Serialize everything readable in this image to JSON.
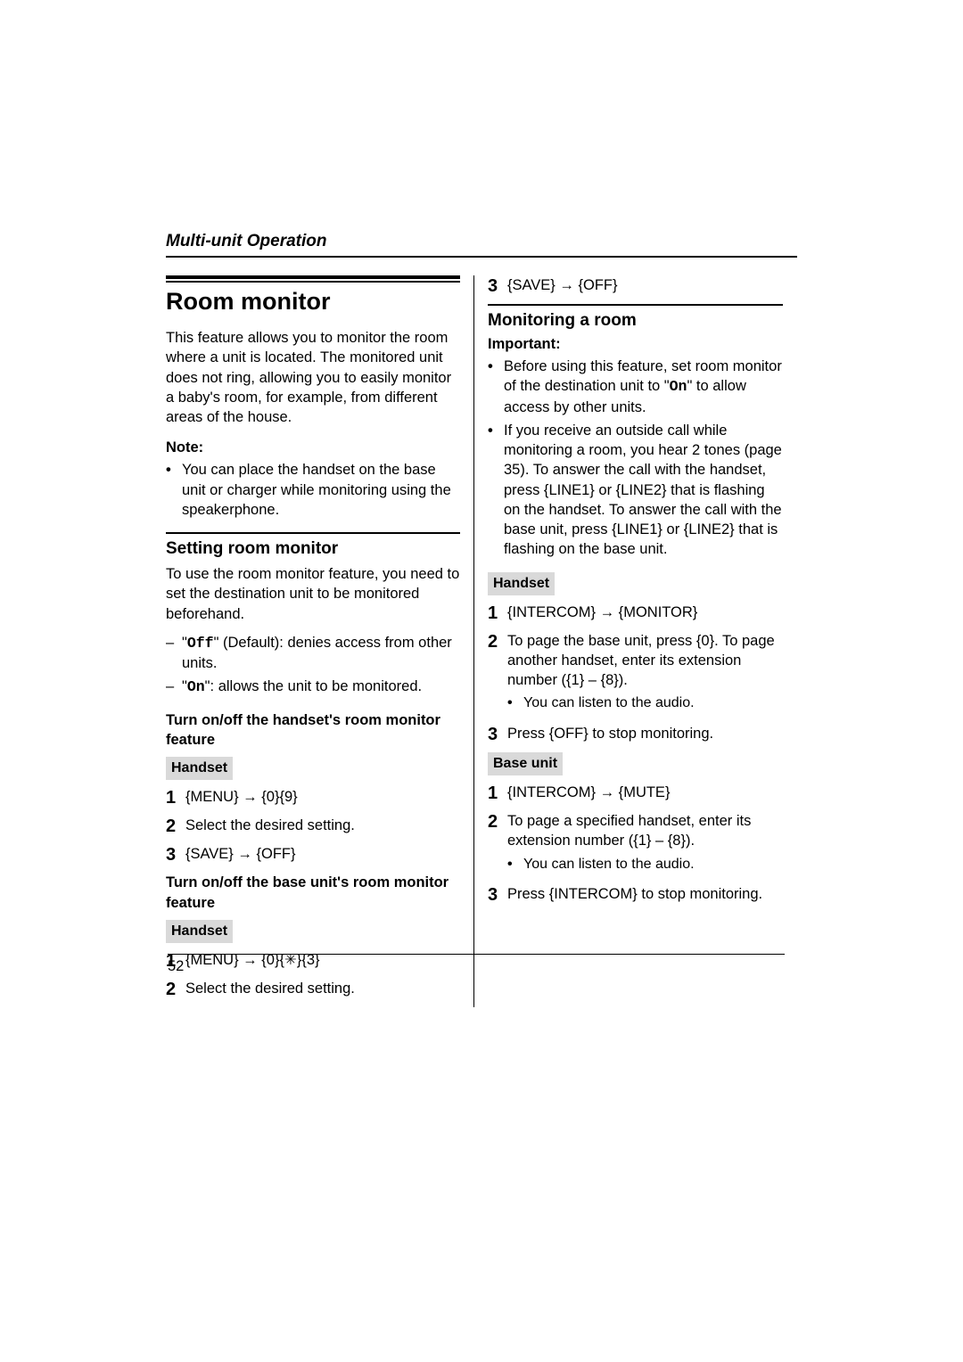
{
  "header": "Multi-unit Operation",
  "leftCol": {
    "h1": "Room monitor",
    "intro": "This feature allows you to monitor the room where a unit is located. The monitored unit does not ring, allowing you to easily monitor a baby's room, for example, from different areas of the house.",
    "noteLabel": "Note:",
    "noteItem": "You can place the handset on the base unit or charger while monitoring using the speakerphone.",
    "h2a": "Setting room monitor",
    "h2aText": "To use the room monitor feature, you need to set the destination unit to be monitored beforehand.",
    "dash1a": "\"",
    "dash1mono": "Off",
    "dash1b": "\" (Default): denies access from other units.",
    "dash2a": "\"",
    "dash2mono": "On",
    "dash2b": "\": allows the unit to be monitored.",
    "boldA": "Turn on/off the handset's room monitor feature",
    "greyHandset1": "Handset",
    "stepA1": "{MENU} → {0}{9}",
    "stepA2": "Select the desired setting.",
    "stepA3": "{SAVE} → {OFF}",
    "boldB": "Turn on/off the base unit's room monitor feature",
    "greyHandset2": "Handset",
    "stepB1": "{MENU} → {0}{✳}{3}",
    "stepB2": "Select the desired setting."
  },
  "rightCol": {
    "stepC3": "{SAVE} → {OFF}",
    "h2b": "Monitoring a room",
    "importantLabel": "Important:",
    "imp1a": "Before using this feature, set room monitor of the destination unit to \"",
    "imp1mono": "On",
    "imp1b": "\" to allow access by other units.",
    "imp2": "If you receive an outside call while monitoring a room, you hear 2 tones (page 35). To answer the call with the handset, press {LINE1} or {LINE2} that is flashing on the handset. To answer the call with the base unit, press {LINE1} or {LINE2} that is flashing on the base unit.",
    "greyHandset3": "Handset",
    "stepD1": "{INTERCOM} → {MONITOR}",
    "stepD2": "To page the base unit, press {0}. To page another handset, enter its extension number ({1} – {8}).",
    "stepD2sub": "You can listen to the audio.",
    "stepD3": "Press {OFF} to stop monitoring.",
    "greyBase": "Base unit",
    "stepE1": "{INTERCOM} → {MUTE}",
    "stepE2": "To page a specified handset, enter its extension number ({1} – {8}).",
    "stepE2sub": "You can listen to the audio.",
    "stepE3": "Press {INTERCOM} to stop monitoring."
  },
  "pageNum": "52",
  "nums": {
    "n1": "1",
    "n2": "2",
    "n3": "3"
  }
}
